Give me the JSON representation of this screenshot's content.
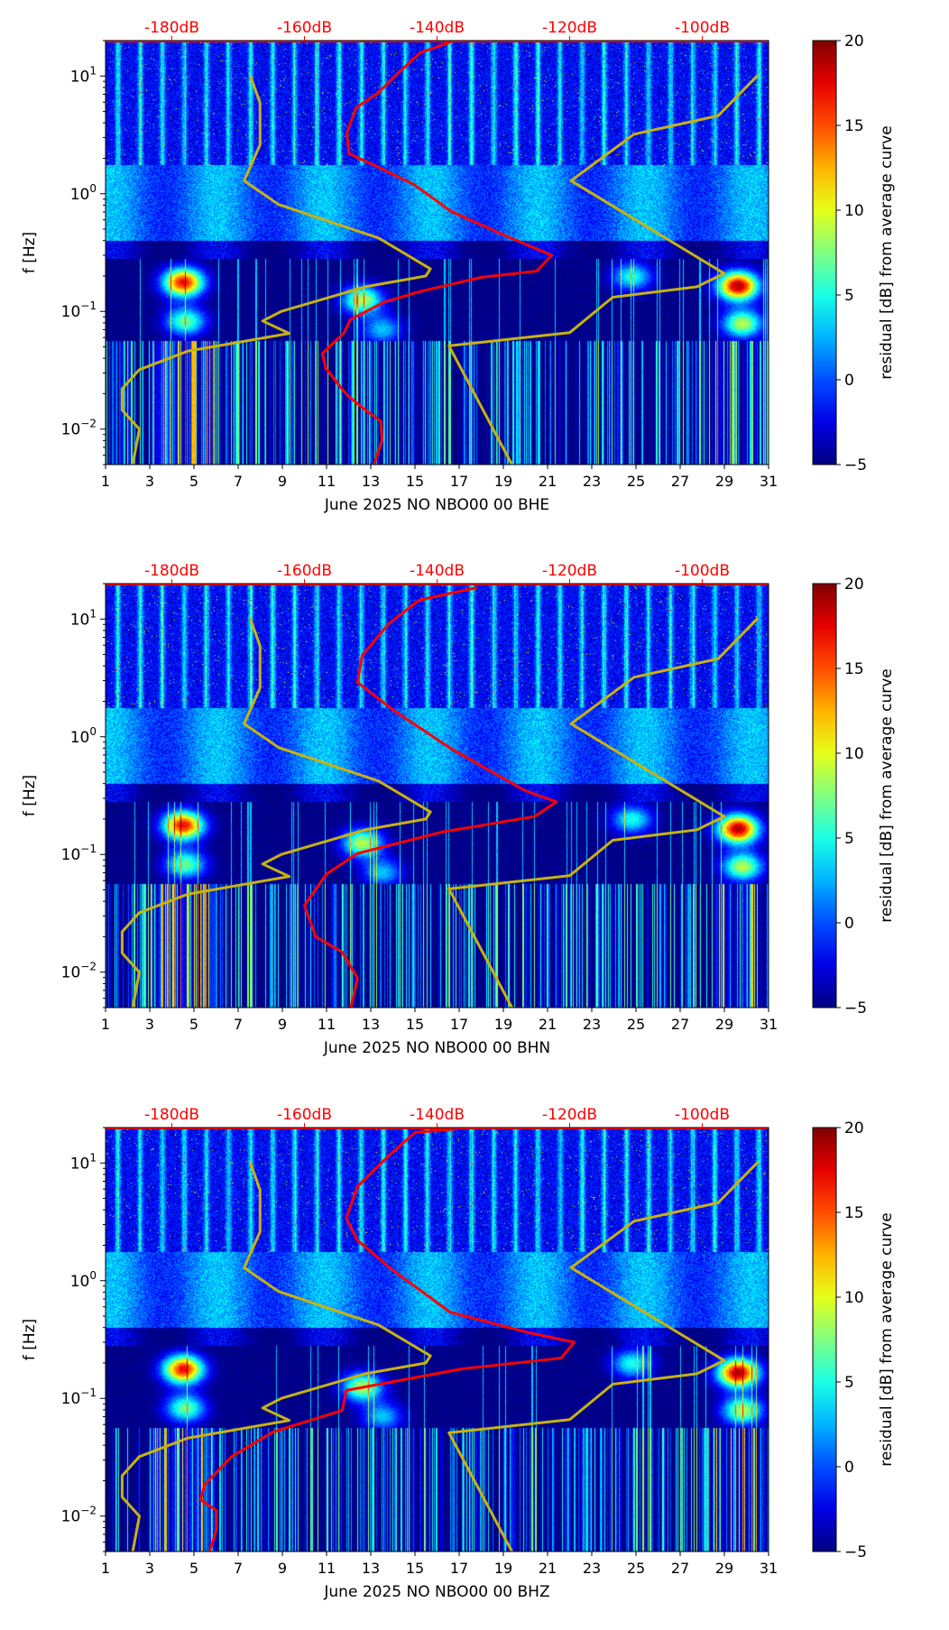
{
  "chart_data": [
    {
      "type": "heatmap",
      "xlabel": "June 2025 NO NBO00 00 BHE",
      "ylabel": "f [Hz]",
      "colorbar_label": "residual [dB] from average curve",
      "xlim": [
        1,
        31
      ],
      "ylim": [
        0.005,
        20
      ],
      "yscale": "log",
      "xticks": [
        "1",
        "3",
        "5",
        "7",
        "9",
        "11",
        "13",
        "15",
        "17",
        "19",
        "21",
        "23",
        "25",
        "27",
        "29",
        "31"
      ],
      "yticks": [
        {
          "value": 10,
          "base": "10",
          "exp": "1"
        },
        {
          "value": 1,
          "base": "10",
          "exp": "0"
        },
        {
          "value": 0.1,
          "base": "10",
          "exp": "−1"
        },
        {
          "value": 0.01,
          "base": "10",
          "exp": "−2"
        }
      ],
      "top_axis": {
        "range_db": [
          -190,
          -90
        ],
        "ticks": [
          {
            "value": -180,
            "label": "-180dB"
          },
          {
            "value": -160,
            "label": "-160dB"
          },
          {
            "value": -140,
            "label": "-140dB"
          },
          {
            "value": -120,
            "label": "-120dB"
          },
          {
            "value": -100,
            "label": "-100dB"
          }
        ]
      },
      "colorbar": {
        "range": [
          -5,
          20
        ],
        "ticks": [
          "20",
          "15",
          "10",
          "5",
          "0",
          "−5"
        ],
        "tick_values": [
          20,
          15,
          10,
          5,
          0,
          -5
        ],
        "colormap": "jet"
      },
      "psd_curve": {
        "color": "#ff0000",
        "points_db_hz": [
          [
            -137.9,
            19.5
          ],
          [
            -142.5,
            15.8
          ],
          [
            -145.8,
            10.7
          ],
          [
            -149,
            7.1
          ],
          [
            -152.2,
            5.4
          ],
          [
            -153.6,
            3.3
          ],
          [
            -153.3,
            2.2
          ],
          [
            -150,
            1.8
          ],
          [
            -143.5,
            1.2
          ],
          [
            -137.9,
            0.71
          ],
          [
            -129.7,
            0.44
          ],
          [
            -122.7,
            0.3
          ],
          [
            -125,
            0.22
          ],
          [
            -133.3,
            0.195
          ],
          [
            -142.5,
            0.148
          ],
          [
            -148,
            0.12
          ],
          [
            -153.1,
            0.085
          ],
          [
            -154,
            0.066
          ],
          [
            -157.3,
            0.044
          ],
          [
            -156.8,
            0.033
          ],
          [
            -153.6,
            0.0195
          ],
          [
            -150.8,
            0.0145
          ],
          [
            -148.5,
            0.0117
          ],
          [
            -148.3,
            0.0081
          ],
          [
            -149.5,
            0.005
          ]
        ]
      },
      "nlnm_curve": {
        "color": "#c8b212",
        "points_db_hz": [
          [
            -168.2,
            10.2
          ],
          [
            -166.7,
            5.9
          ],
          [
            -166.7,
            2.6
          ],
          [
            -169.1,
            1.29
          ],
          [
            -163.9,
            0.81
          ],
          [
            -148.8,
            0.42
          ],
          [
            -141,
            0.23
          ],
          [
            -141.7,
            0.2
          ],
          [
            -150.8,
            0.162
          ],
          [
            -163.5,
            0.1
          ],
          [
            -166.3,
            0.083
          ],
          [
            -162.3,
            0.065
          ],
          [
            -177.6,
            0.046
          ],
          [
            -184.9,
            0.032
          ],
          [
            -187.5,
            0.022
          ],
          [
            -187.5,
            0.0145
          ],
          [
            -184.9,
            0.01
          ],
          [
            -185.9,
            0.005
          ]
        ]
      },
      "nhnm_curve": {
        "color": "#c8b212",
        "points_db_hz": [
          [
            -91.6,
            10.2
          ],
          [
            -97.6,
            4.6
          ],
          [
            -110.3,
            3.2
          ],
          [
            -119.8,
            1.29
          ],
          [
            -96.7,
            0.21
          ],
          [
            -100.8,
            0.162
          ],
          [
            -113.5,
            0.132
          ],
          [
            -120,
            0.066
          ],
          [
            -138.2,
            0.051
          ],
          [
            -128.7,
            0.005
          ]
        ]
      }
    },
    {
      "type": "heatmap",
      "xlabel": "June 2025 NO NBO00 00 BHN",
      "ylabel": "f [Hz]",
      "colorbar_label": "residual [dB] from average curve",
      "xlim": [
        1,
        31
      ],
      "ylim": [
        0.005,
        20
      ],
      "yscale": "log",
      "xticks": [
        "1",
        "3",
        "5",
        "7",
        "9",
        "11",
        "13",
        "15",
        "17",
        "19",
        "21",
        "23",
        "25",
        "27",
        "29",
        "31"
      ],
      "yticks": [
        {
          "value": 10,
          "base": "10",
          "exp": "1"
        },
        {
          "value": 1,
          "base": "10",
          "exp": "0"
        },
        {
          "value": 0.1,
          "base": "10",
          "exp": "−1"
        },
        {
          "value": 0.01,
          "base": "10",
          "exp": "−2"
        }
      ],
      "top_axis": {
        "range_db": [
          -190,
          -90
        ],
        "ticks": [
          {
            "value": -180,
            "label": "-180dB"
          },
          {
            "value": -160,
            "label": "-160dB"
          },
          {
            "value": -140,
            "label": "-140dB"
          },
          {
            "value": -120,
            "label": "-120dB"
          },
          {
            "value": -100,
            "label": "-100dB"
          }
        ]
      },
      "colorbar": {
        "range": [
          -5,
          20
        ],
        "ticks": [
          "20",
          "15",
          "10",
          "5",
          "0",
          "−5"
        ],
        "tick_values": [
          20,
          15,
          10,
          5,
          0,
          -5
        ],
        "colormap": "jet"
      },
      "psd_curve": {
        "color": "#ff0000",
        "points_db_hz": [
          [
            -134,
            18.5
          ],
          [
            -142.7,
            14.5
          ],
          [
            -147.3,
            9.1
          ],
          [
            -151.3,
            4.9
          ],
          [
            -152,
            2.9
          ],
          [
            -146.7,
            1.7
          ],
          [
            -138,
            0.8
          ],
          [
            -126.8,
            0.35
          ],
          [
            -122,
            0.28
          ],
          [
            -125.3,
            0.21
          ],
          [
            -139.3,
            0.155
          ],
          [
            -152,
            0.102
          ],
          [
            -156.7,
            0.068
          ],
          [
            -160,
            0.037
          ],
          [
            -158.3,
            0.02
          ],
          [
            -154.3,
            0.0148
          ],
          [
            -152,
            0.0089
          ],
          [
            -153,
            0.005
          ]
        ]
      },
      "nlnm_curve": {
        "color": "#c8b212",
        "points_db_hz": [
          [
            -168.2,
            10.2
          ],
          [
            -166.7,
            5.9
          ],
          [
            -166.7,
            2.6
          ],
          [
            -169.1,
            1.29
          ],
          [
            -163.9,
            0.81
          ],
          [
            -148.8,
            0.42
          ],
          [
            -141,
            0.23
          ],
          [
            -141.7,
            0.2
          ],
          [
            -150.8,
            0.162
          ],
          [
            -163.5,
            0.1
          ],
          [
            -166.3,
            0.083
          ],
          [
            -162.3,
            0.065
          ],
          [
            -177.6,
            0.046
          ],
          [
            -184.9,
            0.032
          ],
          [
            -187.5,
            0.022
          ],
          [
            -187.5,
            0.0145
          ],
          [
            -184.9,
            0.01
          ],
          [
            -185.9,
            0.005
          ]
        ]
      },
      "nhnm_curve": {
        "color": "#c8b212",
        "points_db_hz": [
          [
            -91.6,
            10.2
          ],
          [
            -97.6,
            4.6
          ],
          [
            -110.3,
            3.2
          ],
          [
            -119.8,
            1.29
          ],
          [
            -96.7,
            0.21
          ],
          [
            -100.8,
            0.162
          ],
          [
            -113.5,
            0.132
          ],
          [
            -120,
            0.066
          ],
          [
            -138.2,
            0.051
          ],
          [
            -128.7,
            0.005
          ]
        ]
      }
    },
    {
      "type": "heatmap",
      "xlabel": "June 2025 NO NBO00 00 BHZ",
      "ylabel": "f [Hz]",
      "colorbar_label": "residual [dB] from average curve",
      "xlim": [
        1,
        31
      ],
      "ylim": [
        0.005,
        20
      ],
      "yscale": "log",
      "xticks": [
        "1",
        "3",
        "5",
        "7",
        "9",
        "11",
        "13",
        "15",
        "17",
        "19",
        "21",
        "23",
        "25",
        "27",
        "29",
        "31"
      ],
      "yticks": [
        {
          "value": 10,
          "base": "10",
          "exp": "1"
        },
        {
          "value": 1,
          "base": "10",
          "exp": "0"
        },
        {
          "value": 0.1,
          "base": "10",
          "exp": "−1"
        },
        {
          "value": 0.01,
          "base": "10",
          "exp": "−2"
        }
      ],
      "top_axis": {
        "range_db": [
          -190,
          -90
        ],
        "ticks": [
          {
            "value": -180,
            "label": "-180dB"
          },
          {
            "value": -160,
            "label": "-160dB"
          },
          {
            "value": -140,
            "label": "-140dB"
          },
          {
            "value": -120,
            "label": "-120dB"
          },
          {
            "value": -100,
            "label": "-100dB"
          }
        ]
      },
      "colorbar": {
        "range": [
          -5,
          20
        ],
        "ticks": [
          "20",
          "15",
          "10",
          "5",
          "0",
          "−5"
        ],
        "tick_values": [
          20,
          15,
          10,
          5,
          0,
          -5
        ],
        "colormap": "jet"
      },
      "psd_curve": {
        "color": "#ff0000",
        "points_db_hz": [
          [
            -137,
            19.5
          ],
          [
            -143.3,
            18.2
          ],
          [
            -147.3,
            11.5
          ],
          [
            -152,
            6.3
          ],
          [
            -153.7,
            3.4
          ],
          [
            -152,
            2.2
          ],
          [
            -146.7,
            1.23
          ],
          [
            -138,
            0.54
          ],
          [
            -126,
            0.36
          ],
          [
            -119.3,
            0.3
          ],
          [
            -121.3,
            0.22
          ],
          [
            -136.3,
            0.178
          ],
          [
            -153.7,
            0.117
          ],
          [
            -154.3,
            0.079
          ],
          [
            -164.7,
            0.052
          ],
          [
            -171,
            0.032
          ],
          [
            -175,
            0.0186
          ],
          [
            -175.7,
            0.0138
          ],
          [
            -173.3,
            0.0112
          ],
          [
            -173.3,
            0.0076
          ],
          [
            -174.3,
            0.005
          ]
        ]
      },
      "nlnm_curve": {
        "color": "#c8b212",
        "points_db_hz": [
          [
            -168.2,
            10.2
          ],
          [
            -166.7,
            5.9
          ],
          [
            -166.7,
            2.6
          ],
          [
            -169.1,
            1.29
          ],
          [
            -163.9,
            0.81
          ],
          [
            -148.8,
            0.42
          ],
          [
            -141,
            0.23
          ],
          [
            -141.7,
            0.2
          ],
          [
            -150.8,
            0.162
          ],
          [
            -163.5,
            0.1
          ],
          [
            -166.3,
            0.083
          ],
          [
            -162.3,
            0.065
          ],
          [
            -177.6,
            0.046
          ],
          [
            -184.9,
            0.032
          ],
          [
            -187.5,
            0.022
          ],
          [
            -187.5,
            0.0145
          ],
          [
            -184.9,
            0.01
          ],
          [
            -185.9,
            0.005
          ]
        ]
      },
      "nhnm_curve": {
        "color": "#c8b212",
        "points_db_hz": [
          [
            -91.6,
            10.2
          ],
          [
            -97.6,
            4.6
          ],
          [
            -110.3,
            3.2
          ],
          [
            -119.8,
            1.29
          ],
          [
            -96.7,
            0.21
          ],
          [
            -100.8,
            0.162
          ],
          [
            -113.5,
            0.132
          ],
          [
            -120,
            0.066
          ],
          [
            -138.2,
            0.051
          ],
          [
            -128.7,
            0.005
          ]
        ]
      }
    }
  ]
}
